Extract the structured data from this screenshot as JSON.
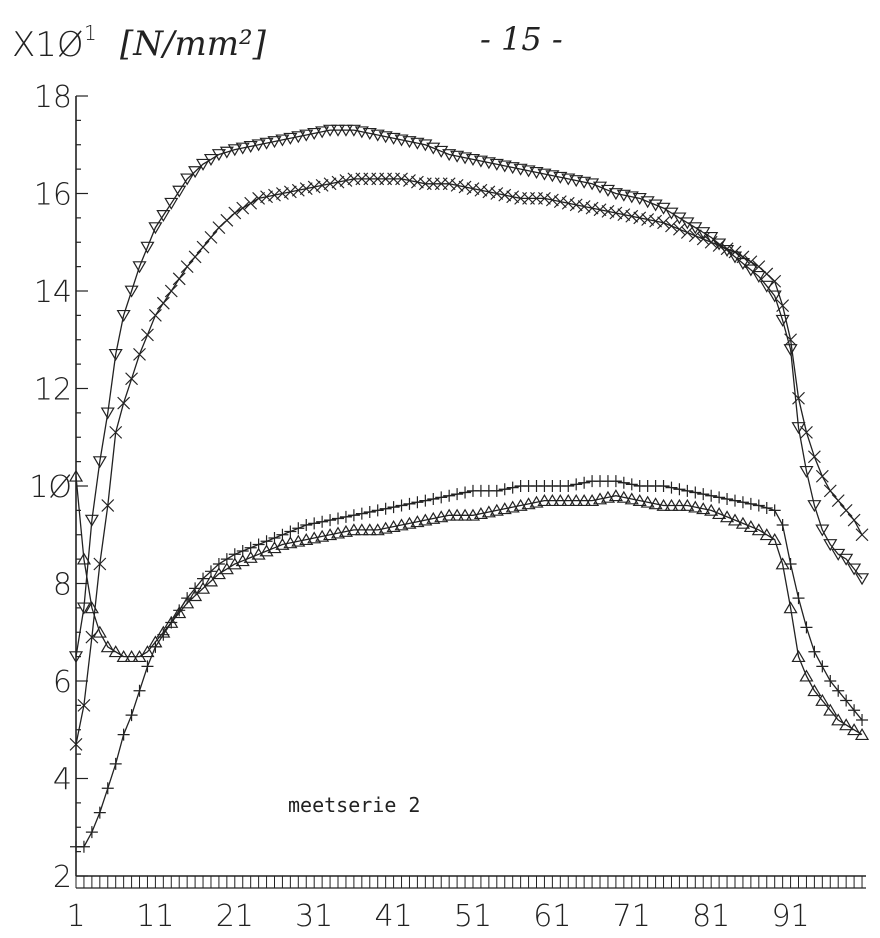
{
  "page_number": "- 15 -",
  "chart_data": {
    "type": "line",
    "title": "",
    "ylabel": "X10^1 [N/mm²]",
    "ylabel_multiplier": "X1Ø",
    "ylabel_exponent": "1",
    "ylabel_unit": "[N/mm²]",
    "xlabel": "",
    "annotation": "meetserie 2",
    "xlim": [
      1,
      100
    ],
    "ylim": [
      2,
      18
    ],
    "x_ticks": [
      1,
      11,
      21,
      31,
      41,
      51,
      61,
      71,
      81,
      91
    ],
    "x_tick_labels": [
      "1",
      "11",
      "21",
      "31",
      "41",
      "51",
      "61",
      "71",
      "81",
      "91"
    ],
    "y_ticks": [
      2,
      4,
      6,
      8,
      10,
      12,
      14,
      16,
      18
    ],
    "y_tick_labels": [
      "2",
      "4",
      "6",
      "8",
      "1Ø",
      "12",
      "14",
      "16",
      "18"
    ],
    "grid": false,
    "legend": "none",
    "line_color": "#222222",
    "series": [
      {
        "marker": "triangle-down",
        "points": [
          [
            1,
            6.5
          ],
          [
            2,
            7.5
          ],
          [
            3,
            9.3
          ],
          [
            4,
            10.5
          ],
          [
            5,
            11.5
          ],
          [
            6,
            12.7
          ],
          [
            7,
            13.5
          ],
          [
            8,
            14.0
          ],
          [
            9,
            14.5
          ],
          [
            10,
            14.9
          ],
          [
            11,
            15.3
          ],
          [
            13,
            15.8
          ],
          [
            15,
            16.3
          ],
          [
            17,
            16.6
          ],
          [
            19,
            16.8
          ],
          [
            21,
            16.9
          ],
          [
            24,
            17.0
          ],
          [
            27,
            17.1
          ],
          [
            30,
            17.2
          ],
          [
            33,
            17.3
          ],
          [
            36,
            17.3
          ],
          [
            39,
            17.2
          ],
          [
            42,
            17.1
          ],
          [
            45,
            17.0
          ],
          [
            48,
            16.8
          ],
          [
            51,
            16.7
          ],
          [
            54,
            16.6
          ],
          [
            57,
            16.5
          ],
          [
            60,
            16.4
          ],
          [
            63,
            16.3
          ],
          [
            66,
            16.2
          ],
          [
            69,
            16.0
          ],
          [
            72,
            15.9
          ],
          [
            75,
            15.7
          ],
          [
            78,
            15.4
          ],
          [
            81,
            15.1
          ],
          [
            84,
            14.7
          ],
          [
            87,
            14.3
          ],
          [
            89,
            13.9
          ],
          [
            90,
            13.4
          ],
          [
            91,
            12.8
          ],
          [
            92,
            11.2
          ],
          [
            93,
            10.3
          ],
          [
            94,
            9.6
          ],
          [
            95,
            9.1
          ],
          [
            96,
            8.8
          ],
          [
            97,
            8.6
          ],
          [
            98,
            8.5
          ],
          [
            99,
            8.3
          ],
          [
            100,
            8.1
          ]
        ]
      },
      {
        "marker": "x",
        "points": [
          [
            1,
            4.7
          ],
          [
            2,
            5.5
          ],
          [
            3,
            6.9
          ],
          [
            4,
            8.4
          ],
          [
            5,
            9.6
          ],
          [
            6,
            11.1
          ],
          [
            7,
            11.7
          ],
          [
            8,
            12.2
          ],
          [
            9,
            12.7
          ],
          [
            10,
            13.1
          ],
          [
            11,
            13.5
          ],
          [
            13,
            14.0
          ],
          [
            15,
            14.5
          ],
          [
            17,
            14.9
          ],
          [
            19,
            15.3
          ],
          [
            21,
            15.6
          ],
          [
            24,
            15.9
          ],
          [
            27,
            16.0
          ],
          [
            30,
            16.1
          ],
          [
            33,
            16.2
          ],
          [
            36,
            16.3
          ],
          [
            39,
            16.3
          ],
          [
            42,
            16.3
          ],
          [
            45,
            16.2
          ],
          [
            48,
            16.2
          ],
          [
            51,
            16.1
          ],
          [
            54,
            16.0
          ],
          [
            57,
            15.9
          ],
          [
            60,
            15.9
          ],
          [
            63,
            15.8
          ],
          [
            66,
            15.7
          ],
          [
            69,
            15.6
          ],
          [
            72,
            15.5
          ],
          [
            75,
            15.4
          ],
          [
            78,
            15.2
          ],
          [
            81,
            15.0
          ],
          [
            84,
            14.8
          ],
          [
            87,
            14.5
          ],
          [
            89,
            14.2
          ],
          [
            90,
            13.7
          ],
          [
            91,
            13.0
          ],
          [
            92,
            11.8
          ],
          [
            93,
            11.1
          ],
          [
            94,
            10.6
          ],
          [
            95,
            10.2
          ],
          [
            96,
            9.9
          ],
          [
            97,
            9.7
          ],
          [
            98,
            9.5
          ],
          [
            99,
            9.3
          ],
          [
            100,
            9.0
          ]
        ]
      },
      {
        "marker": "triangle-up",
        "points": [
          [
            1,
            10.2
          ],
          [
            2,
            8.5
          ],
          [
            3,
            7.5
          ],
          [
            4,
            7.0
          ],
          [
            5,
            6.7
          ],
          [
            6,
            6.6
          ],
          [
            7,
            6.5
          ],
          [
            8,
            6.5
          ],
          [
            9,
            6.5
          ],
          [
            10,
            6.6
          ],
          [
            11,
            6.8
          ],
          [
            13,
            7.2
          ],
          [
            15,
            7.6
          ],
          [
            17,
            7.9
          ],
          [
            19,
            8.2
          ],
          [
            21,
            8.4
          ],
          [
            24,
            8.6
          ],
          [
            27,
            8.8
          ],
          [
            30,
            8.9
          ],
          [
            33,
            9.0
          ],
          [
            36,
            9.1
          ],
          [
            39,
            9.1
          ],
          [
            42,
            9.2
          ],
          [
            45,
            9.3
          ],
          [
            48,
            9.4
          ],
          [
            51,
            9.4
          ],
          [
            54,
            9.5
          ],
          [
            57,
            9.6
          ],
          [
            60,
            9.7
          ],
          [
            63,
            9.7
          ],
          [
            66,
            9.7
          ],
          [
            69,
            9.8
          ],
          [
            72,
            9.7
          ],
          [
            75,
            9.6
          ],
          [
            78,
            9.6
          ],
          [
            81,
            9.5
          ],
          [
            84,
            9.3
          ],
          [
            87,
            9.1
          ],
          [
            89,
            8.9
          ],
          [
            90,
            8.4
          ],
          [
            91,
            7.5
          ],
          [
            92,
            6.5
          ],
          [
            93,
            6.1
          ],
          [
            94,
            5.8
          ],
          [
            95,
            5.6
          ],
          [
            96,
            5.4
          ],
          [
            97,
            5.2
          ],
          [
            98,
            5.1
          ],
          [
            99,
            5.0
          ],
          [
            100,
            4.9
          ]
        ]
      },
      {
        "marker": "plus",
        "points": [
          [
            1,
            2.6
          ],
          [
            2,
            2.6
          ],
          [
            3,
            2.9
          ],
          [
            4,
            3.3
          ],
          [
            5,
            3.8
          ],
          [
            6,
            4.3
          ],
          [
            7,
            4.9
          ],
          [
            8,
            5.3
          ],
          [
            9,
            5.8
          ],
          [
            10,
            6.3
          ],
          [
            11,
            6.7
          ],
          [
            13,
            7.2
          ],
          [
            15,
            7.7
          ],
          [
            17,
            8.1
          ],
          [
            19,
            8.4
          ],
          [
            21,
            8.6
          ],
          [
            24,
            8.8
          ],
          [
            27,
            9.0
          ],
          [
            30,
            9.2
          ],
          [
            33,
            9.3
          ],
          [
            36,
            9.4
          ],
          [
            39,
            9.5
          ],
          [
            42,
            9.6
          ],
          [
            45,
            9.7
          ],
          [
            48,
            9.8
          ],
          [
            51,
            9.9
          ],
          [
            54,
            9.9
          ],
          [
            57,
            10.0
          ],
          [
            60,
            10.0
          ],
          [
            63,
            10.0
          ],
          [
            66,
            10.1
          ],
          [
            69,
            10.1
          ],
          [
            72,
            10.0
          ],
          [
            75,
            10.0
          ],
          [
            78,
            9.9
          ],
          [
            81,
            9.8
          ],
          [
            84,
            9.7
          ],
          [
            87,
            9.6
          ],
          [
            89,
            9.5
          ],
          [
            90,
            9.2
          ],
          [
            91,
            8.4
          ],
          [
            92,
            7.7
          ],
          [
            93,
            7.1
          ],
          [
            94,
            6.6
          ],
          [
            95,
            6.3
          ],
          [
            96,
            6.0
          ],
          [
            97,
            5.8
          ],
          [
            98,
            5.6
          ],
          [
            99,
            5.4
          ],
          [
            100,
            5.2
          ]
        ]
      }
    ]
  }
}
